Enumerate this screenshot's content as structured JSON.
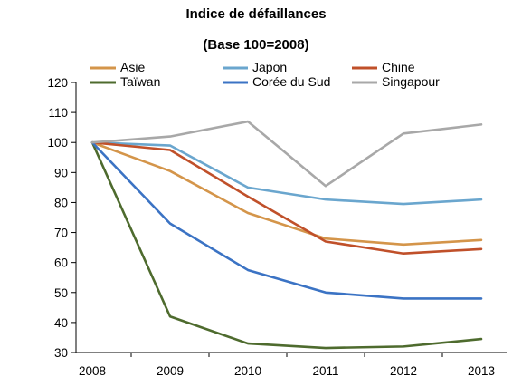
{
  "chart_data": {
    "type": "line",
    "title": "Indice de défaillances",
    "subtitle": "(Base 100=2008)",
    "xlabel": "",
    "ylabel": "",
    "x": [
      "2008",
      "2009",
      "2010",
      "2011",
      "2012",
      "2013"
    ],
    "ylim": [
      30,
      120
    ],
    "yticks": [
      30,
      40,
      50,
      60,
      70,
      80,
      90,
      100,
      110,
      120
    ],
    "grid": false,
    "legend_position": "top",
    "series": [
      {
        "name": "Asie",
        "color": "#D4954A",
        "values": [
          100,
          90.5,
          76.5,
          68,
          66,
          67.5
        ]
      },
      {
        "name": "Japon",
        "color": "#6AA6CE",
        "values": [
          100,
          99,
          85,
          81,
          79.5,
          81
        ]
      },
      {
        "name": "Chine",
        "color": "#C0502A",
        "values": [
          100,
          97.5,
          82,
          67,
          63,
          64.5
        ]
      },
      {
        "name": "Taïwan",
        "color": "#4E6B2E",
        "values": [
          100,
          42,
          33,
          31.5,
          32,
          34.5
        ]
      },
      {
        "name": "Corée du Sud",
        "color": "#3B73C4",
        "values": [
          100,
          73,
          57.5,
          50,
          48,
          48
        ]
      },
      {
        "name": "Singapour",
        "color": "#A8A8A8",
        "values": [
          100,
          102,
          107,
          85.5,
          103,
          106
        ]
      }
    ]
  }
}
